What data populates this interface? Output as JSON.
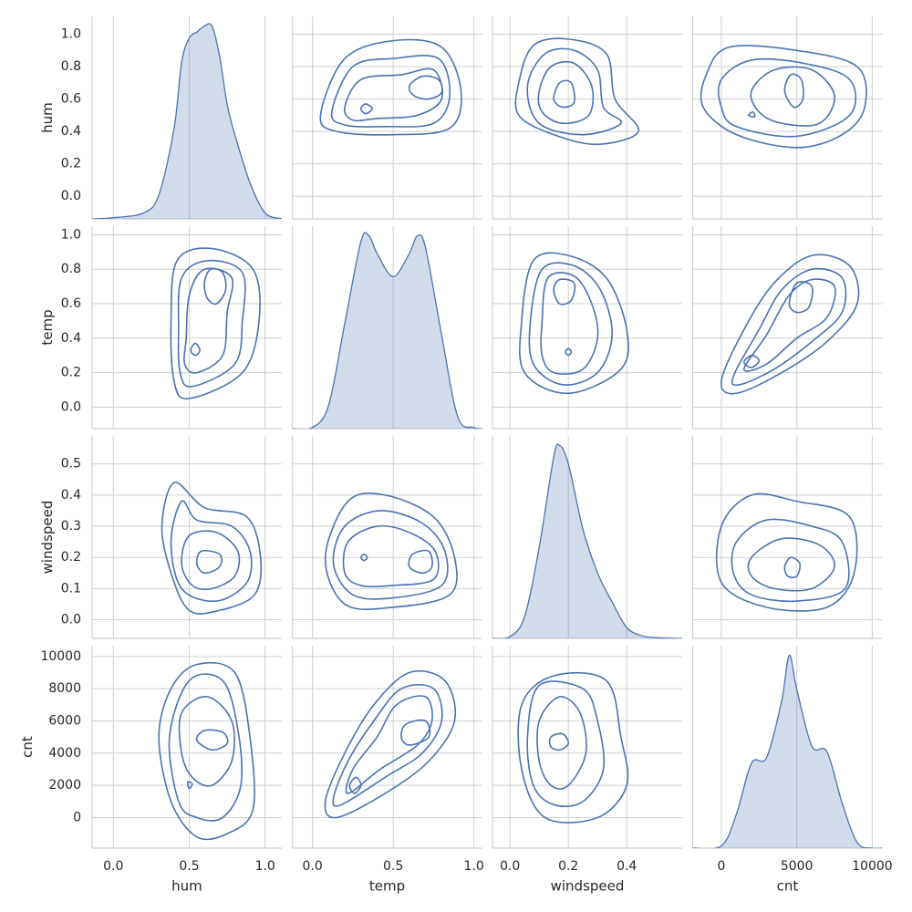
{
  "chart_data": {
    "type": "pairplot",
    "grid": true,
    "color": "#4c72b0",
    "variables": [
      {
        "name": "hum",
        "lim": [
          -0.14,
          1.11
        ],
        "xticks": [
          {
            "value": 0,
            "label": "0.0"
          },
          0.5,
          {
            "value": 1,
            "label": "1.0"
          }
        ],
        "yticks": [
          {
            "value": 0,
            "label": "0.0"
          },
          0.2,
          0.4,
          0.6,
          0.8,
          {
            "value": 1,
            "label": "1.0"
          }
        ]
      },
      {
        "name": "temp",
        "lim": [
          -0.125,
          1.05
        ],
        "xticks": [
          {
            "value": 0,
            "label": "0.0"
          },
          0.5,
          {
            "value": 1,
            "label": "1.0"
          }
        ],
        "yticks": [
          {
            "value": 0,
            "label": "0.0"
          },
          0.2,
          0.4,
          0.6,
          0.8,
          {
            "value": 1,
            "label": "1.0"
          }
        ]
      },
      {
        "name": "windspeed",
        "lim": [
          -0.06,
          0.59
        ],
        "xticks": [
          {
            "value": 0,
            "label": "0.0"
          },
          0.2,
          0.4
        ],
        "yticks": [
          {
            "value": 0,
            "label": "0.0"
          },
          0.1,
          0.2,
          0.3,
          0.4,
          0.5
        ]
      },
      {
        "name": "cnt",
        "lim": [
          -1900,
          10670
        ],
        "xticks": [
          0,
          5000,
          10000
        ],
        "yticks": [
          0,
          2000,
          4000,
          6000,
          8000,
          10000
        ]
      }
    ],
    "diagonal": [
      {
        "x": [
          -0.14,
          0,
          0.2,
          0.3,
          0.4,
          0.45,
          0.5,
          0.55,
          0.6,
          0.65,
          0.7,
          0.75,
          0.8,
          0.9,
          1.0,
          1.11
        ],
        "density": [
          0,
          0.02,
          0.1,
          0.4,
          1.5,
          2.6,
          3.0,
          3.1,
          3.2,
          3.2,
          2.7,
          1.9,
          1.4,
          0.6,
          0.1,
          0
        ]
      },
      {
        "x": [
          -0.125,
          0,
          0.1,
          0.2,
          0.3,
          0.35,
          0.4,
          0.5,
          0.6,
          0.65,
          0.7,
          0.8,
          0.9,
          1.0,
          1.05
        ],
        "density": [
          0,
          0.01,
          0.2,
          0.9,
          1.6,
          1.65,
          1.5,
          1.3,
          1.5,
          1.65,
          1.55,
          0.8,
          0.1,
          0.01,
          0
        ]
      },
      {
        "x": [
          -0.06,
          0,
          0.05,
          0.1,
          0.15,
          0.17,
          0.2,
          0.25,
          0.3,
          0.35,
          0.4,
          0.45,
          0.5,
          0.59
        ],
        "density": [
          0,
          0.05,
          0.6,
          2.5,
          5.0,
          5.3,
          4.8,
          3.0,
          1.8,
          1.0,
          0.3,
          0.08,
          0.02,
          0
        ]
      },
      {
        "x": [
          -1900,
          0,
          1000,
          2000,
          3000,
          4000,
          4500,
          5000,
          6000,
          7000,
          8000,
          9000,
          10000,
          10670
        ],
        "density": [
          0,
          2e-06,
          3e-05,
          7.5e-05,
          8e-05,
          0.00013,
          0.00017,
          0.00014,
          9e-05,
          8.5e-05,
          4e-05,
          5e-06,
          0,
          0
        ]
      }
    ],
    "contours": [
      [
        [
          {
            "x": [
              0.05,
              0.2,
              0.5,
              0.8,
              0.92,
              0.85,
              0.5,
              0.15
            ],
            "y": [
              0.5,
              0.85,
              0.96,
              0.92,
              0.65,
              0.42,
              0.38,
              0.4
            ]
          },
          {
            "x": [
              0.12,
              0.25,
              0.5,
              0.78,
              0.85,
              0.75,
              0.45,
              0.2
            ],
            "y": [
              0.52,
              0.8,
              0.85,
              0.85,
              0.62,
              0.45,
              0.43,
              0.44
            ]
          },
          {
            "x": [
              0.2,
              0.3,
              0.55,
              0.75,
              0.8,
              0.65,
              0.4,
              0.25
            ],
            "y": [
              0.55,
              0.72,
              0.75,
              0.78,
              0.6,
              0.5,
              0.48,
              0.47
            ]
          },
          {
            "x": [
              0.6,
              0.68,
              0.78,
              0.8,
              0.72,
              0.63
            ],
            "y": [
              0.68,
              0.74,
              0.72,
              0.64,
              0.6,
              0.62
            ]
          },
          {
            "x": [
              0.3,
              0.33,
              0.37,
              0.33
            ],
            "y": [
              0.54,
              0.57,
              0.54,
              0.51
            ]
          }
        ],
        [
          {
            "x": [
              0.03,
              0.08,
              0.2,
              0.33,
              0.36,
              0.44,
              0.3,
              0.15,
              0.03
            ],
            "y": [
              0.7,
              0.93,
              0.97,
              0.88,
              0.6,
              0.4,
              0.32,
              0.38,
              0.5
            ]
          },
          {
            "x": [
              0.06,
              0.12,
              0.22,
              0.3,
              0.32,
              0.38,
              0.25,
              0.1
            ],
            "y": [
              0.68,
              0.88,
              0.9,
              0.78,
              0.55,
              0.45,
              0.38,
              0.45
            ]
          },
          {
            "x": [
              0.1,
              0.14,
              0.22,
              0.28,
              0.27,
              0.18,
              0.11
            ],
            "y": [
              0.65,
              0.8,
              0.82,
              0.68,
              0.5,
              0.45,
              0.52
            ]
          },
          {
            "x": [
              0.15,
              0.17,
              0.21,
              0.22,
              0.18
            ],
            "y": [
              0.6,
              0.7,
              0.7,
              0.58,
              0.55
            ]
          }
        ],
        [
          {
            "x": [
              -1000,
              500,
              5000,
              9000,
              9500,
              8000,
              5000,
              1000,
              -1200
            ],
            "y": [
              0.75,
              0.92,
              0.9,
              0.8,
              0.55,
              0.38,
              0.3,
              0.38,
              0.55
            ]
          },
          {
            "x": [
              0,
              2000,
              5500,
              8500,
              8500,
              5000,
              1000,
              0
            ],
            "y": [
              0.72,
              0.84,
              0.82,
              0.72,
              0.5,
              0.37,
              0.43,
              0.55
            ]
          },
          {
            "x": [
              2000,
              3500,
              6000,
              7500,
              6500,
              4000,
              2500
            ],
            "y": [
              0.65,
              0.78,
              0.78,
              0.62,
              0.45,
              0.45,
              0.52
            ]
          },
          {
            "x": [
              4200,
              4600,
              5300,
              5400,
              4800
            ],
            "y": [
              0.65,
              0.75,
              0.72,
              0.6,
              0.55
            ]
          },
          {
            "x": [
              1800,
              2100,
              2200
            ],
            "y": [
              0.5,
              0.52,
              0.49
            ]
          }
        ]
      ],
      [
        [
          {
            "x": [
              0.04,
              0.08,
              0.2,
              0.33,
              0.4,
              0.38,
              0.2,
              0.05
            ],
            "y": [
              0.5,
              0.85,
              0.88,
              0.75,
              0.45,
              0.22,
              0.08,
              0.2
            ]
          },
          {
            "x": [
              0.07,
              0.11,
              0.22,
              0.31,
              0.35,
              0.3,
              0.18,
              0.08
            ],
            "y": [
              0.5,
              0.8,
              0.82,
              0.68,
              0.42,
              0.2,
              0.13,
              0.25
            ]
          },
          {
            "x": [
              0.11,
              0.13,
              0.22,
              0.28,
              0.3,
              0.25,
              0.15,
              0.11
            ],
            "y": [
              0.5,
              0.75,
              0.76,
              0.6,
              0.4,
              0.22,
              0.2,
              0.3
            ]
          },
          {
            "x": [
              0.15,
              0.17,
              0.22,
              0.21,
              0.17
            ],
            "y": [
              0.68,
              0.74,
              0.72,
              0.62,
              0.6
            ]
          },
          {
            "x": [
              0.19,
              0.2,
              0.21,
              0.2
            ],
            "y": [
              0.32,
              0.34,
              0.32,
              0.3
            ]
          }
        ],
        [
          {
            "x": [
              0,
              1500,
              3500,
              6000,
              8500,
              9000,
              7000,
              4000,
              1000
            ],
            "y": [
              0.15,
              0.45,
              0.72,
              0.88,
              0.82,
              0.6,
              0.38,
              0.2,
              0.08
            ]
          },
          {
            "x": [
              800,
              2500,
              4000,
              6000,
              8000,
              8000,
              6000,
              3500,
              1200
            ],
            "y": [
              0.18,
              0.45,
              0.68,
              0.8,
              0.75,
              0.55,
              0.38,
              0.22,
              0.13
            ]
          },
          {
            "x": [
              1500,
              3000,
              4500,
              6000,
              7500,
              7000,
              5000,
              3000
            ],
            "y": [
              0.22,
              0.42,
              0.65,
              0.74,
              0.7,
              0.52,
              0.4,
              0.25
            ]
          },
          {
            "x": [
              4500,
              5000,
              6000,
              5800,
              5000
            ],
            "y": [
              0.6,
              0.72,
              0.7,
              0.58,
              0.55
            ]
          },
          {
            "x": [
              1500,
              2000,
              2500,
              2000
            ],
            "y": [
              0.26,
              0.3,
              0.27,
              0.23
            ]
          }
        ]
      ],
      [
        [
          {
            "x": [
              0,
              2000,
              5000,
              8500,
              8800,
              7000,
              3000,
              0
            ],
            "y": [
              0.3,
              0.4,
              0.38,
              0.33,
              0.15,
              0.04,
              0.04,
              0.12
            ]
          },
          {
            "x": [
              1000,
              3000,
              6000,
              8000,
              8200,
              5000,
              2000,
              800
            ],
            "y": [
              0.25,
              0.32,
              0.3,
              0.25,
              0.1,
              0.06,
              0.08,
              0.15
            ]
          },
          {
            "x": [
              2000,
              4000,
              6500,
              7500,
              6000,
              3500,
              2000
            ],
            "y": [
              0.2,
              0.26,
              0.24,
              0.17,
              0.1,
              0.1,
              0.14
            ]
          },
          {
            "x": [
              4200,
              4600,
              5200,
              5000,
              4400
            ],
            "y": [
              0.17,
              0.2,
              0.18,
              0.14,
              0.14
            ]
          }
        ]
      ]
    ]
  }
}
